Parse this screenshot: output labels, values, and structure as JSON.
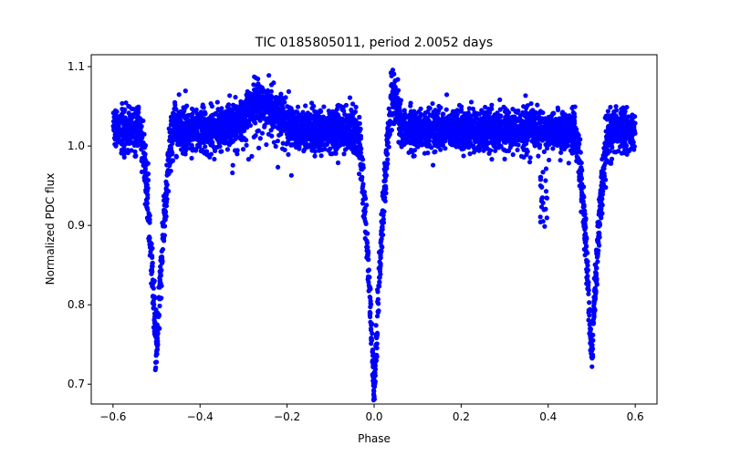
{
  "chart_data": {
    "type": "scatter",
    "title": "TIC 0185805011, period 2.0052 days",
    "xlabel": "Phase",
    "ylabel": "Normalized PDC flux",
    "xlim": [
      -0.65,
      0.65
    ],
    "ylim": [
      0.675,
      1.115
    ],
    "xticks": [
      -0.6,
      -0.4,
      -0.2,
      0.0,
      0.2,
      0.4,
      0.6
    ],
    "xtick_labels": [
      "−0.6",
      "−0.4",
      "−0.2",
      "0.0",
      "0.2",
      "0.4",
      "0.6"
    ],
    "yticks": [
      0.7,
      0.8,
      0.9,
      1.0,
      1.1
    ],
    "ytick_labels": [
      "0.7",
      "0.8",
      "0.9",
      "1.0",
      "1.1"
    ],
    "grid": false,
    "legend": "none",
    "marker_color": "#0000ff",
    "phase_range": [
      -0.6,
      0.6
    ],
    "baseline": 1.02,
    "scatter_sigma": 0.018,
    "eclipses": [
      {
        "center": -0.5,
        "depth_min": 0.735,
        "half_width": 0.04
      },
      {
        "center": 0.0,
        "depth_min": 0.688,
        "half_width": 0.04
      },
      {
        "center": 0.5,
        "depth_min": 0.735,
        "half_width": 0.04
      }
    ],
    "features": [
      {
        "x": -0.26,
        "y_max": 1.09
      },
      {
        "x": 0.04,
        "y_max": 1.097
      },
      {
        "x": 0.39,
        "y_min": 0.905
      }
    ]
  }
}
